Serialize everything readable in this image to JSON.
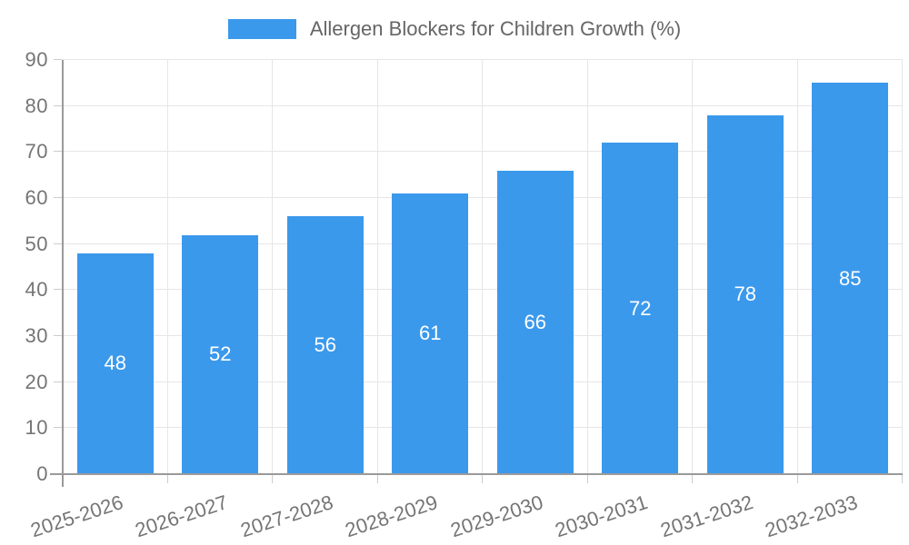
{
  "chart_data": {
    "type": "bar",
    "title": "Allergen Blockers for Children Growth (%)",
    "legend": {
      "position": "top",
      "entries": [
        {
          "label": "Allergen Blockers for Children Growth (%)",
          "color": "#3B99EC"
        }
      ]
    },
    "categories": [
      "2025-2026",
      "2026-2027",
      "2027-2028",
      "2028-2029",
      "2029-2030",
      "2030-2031",
      "2031-2032",
      "2032-2033"
    ],
    "series": [
      {
        "name": "Allergen Blockers for Children Growth (%)",
        "values": [
          48,
          52,
          56,
          61,
          66,
          72,
          78,
          85
        ],
        "color": "#3B99EC",
        "value_labels_shown": true
      }
    ],
    "xlabel": "",
    "ylabel": "",
    "ylim": [
      0,
      90
    ],
    "yticks": [
      0,
      10,
      20,
      30,
      40,
      50,
      60,
      70,
      80,
      90
    ],
    "grid": true,
    "x_tick_rotation_deg": -18
  },
  "colors": {
    "background": "#FFFFFF",
    "bar": "#3B99EC",
    "grid": "#E6E6E6",
    "axis": "#9A9A9A",
    "tick": "#CCCCCC",
    "tick_label": "#757575",
    "legend_text": "#666666",
    "value_label": "#FFFFFF"
  }
}
